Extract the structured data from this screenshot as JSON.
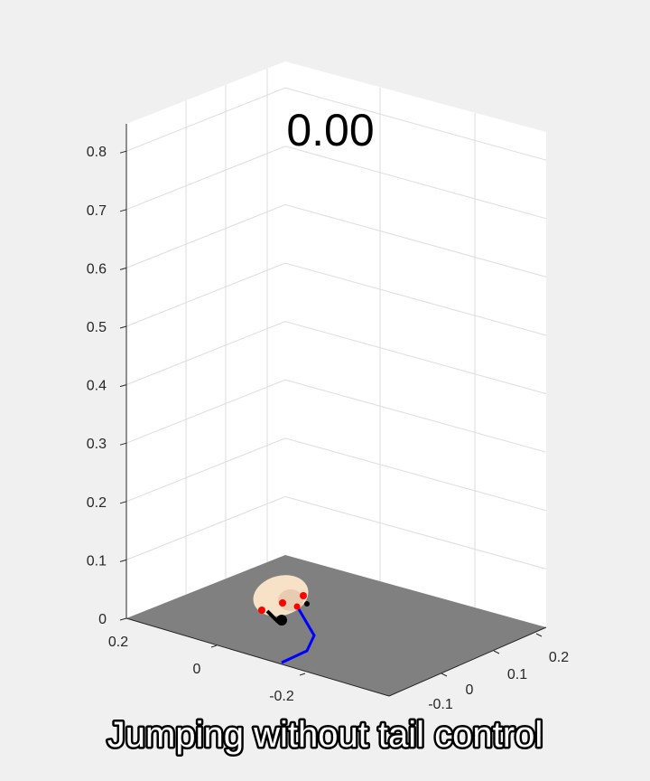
{
  "time_display": "0.00",
  "caption": "Jumping without tail control",
  "colors": {
    "background": "#f0f0f0",
    "axes_wall": "#ffffff",
    "gridline": "#dddddd",
    "floor": "#808080",
    "body": "#f7e2c8",
    "joint_marker": "#ff0000",
    "leg": "#000000",
    "tail": "#0000ff"
  },
  "chart_data": {
    "type": "scatter",
    "projection": "3d",
    "grid": true,
    "xlim": [
      -0.15,
      0.25
    ],
    "ylim": [
      -0.3,
      0.25
    ],
    "zlim": [
      0,
      0.85
    ],
    "x_ticks": [
      "-0.1",
      "0",
      "0.1",
      "0.2"
    ],
    "y_ticks": [
      "-0.2",
      "0",
      "0.2"
    ],
    "z_ticks": [
      "0",
      "0.1",
      "0.2",
      "0.3",
      "0.4",
      "0.5",
      "0.6",
      "0.7",
      "0.8"
    ],
    "series": [
      {
        "values": [
          [
            0.0,
            -0.02,
            0.03
          ],
          [
            0.02,
            -0.05,
            0.04
          ],
          [
            -0.01,
            -0.08,
            0.0
          ]
        ]
      },
      {
        "values": [
          [
            0.02,
            -0.05,
            0.02
          ],
          [
            0.05,
            -0.12,
            0.0
          ],
          [
            0.1,
            -0.14,
            0.0
          ],
          [
            0.15,
            -0.22,
            0.0
          ]
        ]
      }
    ]
  }
}
